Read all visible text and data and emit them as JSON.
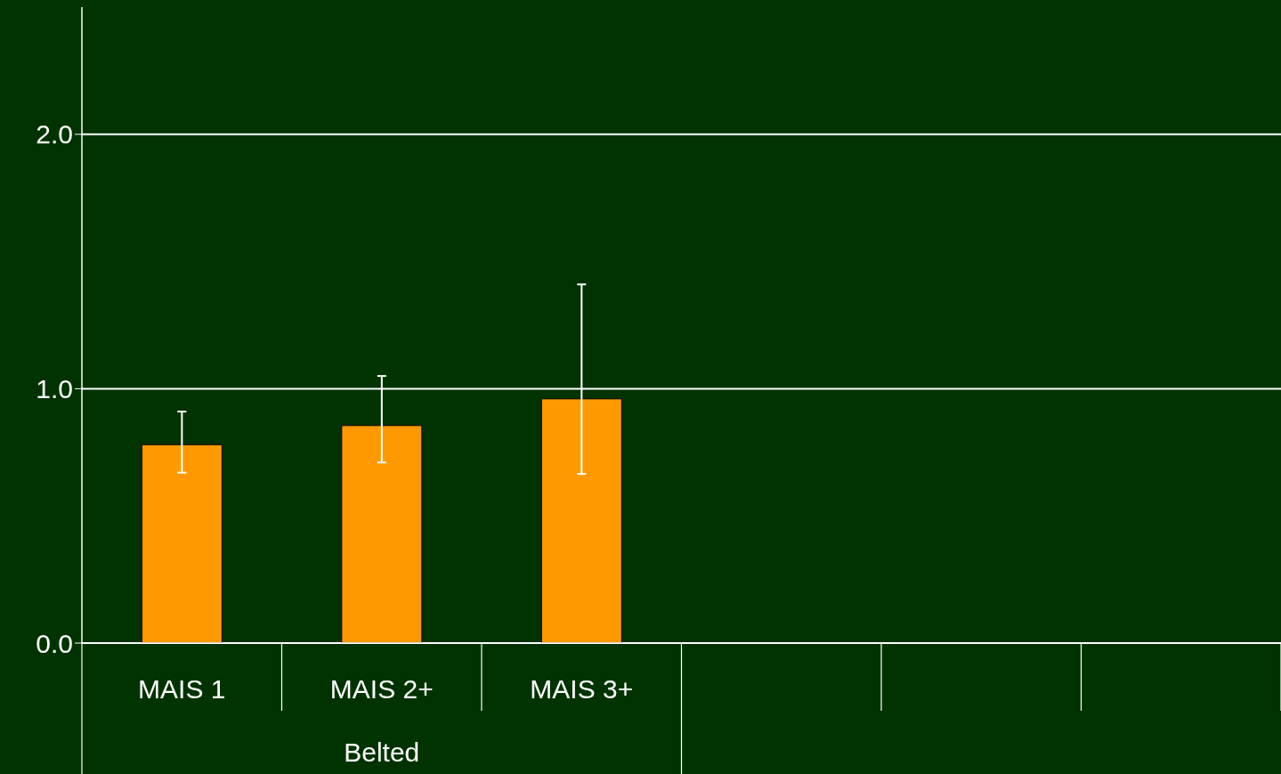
{
  "chart_data": {
    "type": "bar",
    "categories": [
      "MAIS 1",
      "MAIS 2+",
      "MAIS 3+",
      null,
      null,
      null
    ],
    "values": [
      0.78,
      0.855,
      0.96,
      null,
      null,
      null
    ],
    "errors": [
      [
        0.67,
        0.91
      ],
      [
        0.71,
        1.05
      ],
      [
        0.665,
        1.41
      ],
      null,
      null,
      null
    ],
    "color": "#ff9900",
    "ylim": [
      0,
      2.5
    ],
    "yticks": [
      {
        "value": 0,
        "label": "0.0"
      },
      {
        "value": 1,
        "label": "1.0"
      },
      {
        "value": 2,
        "label": "2.0"
      }
    ],
    "grid": "y",
    "legend": false,
    "annotations": [
      "Belted"
    ]
  }
}
